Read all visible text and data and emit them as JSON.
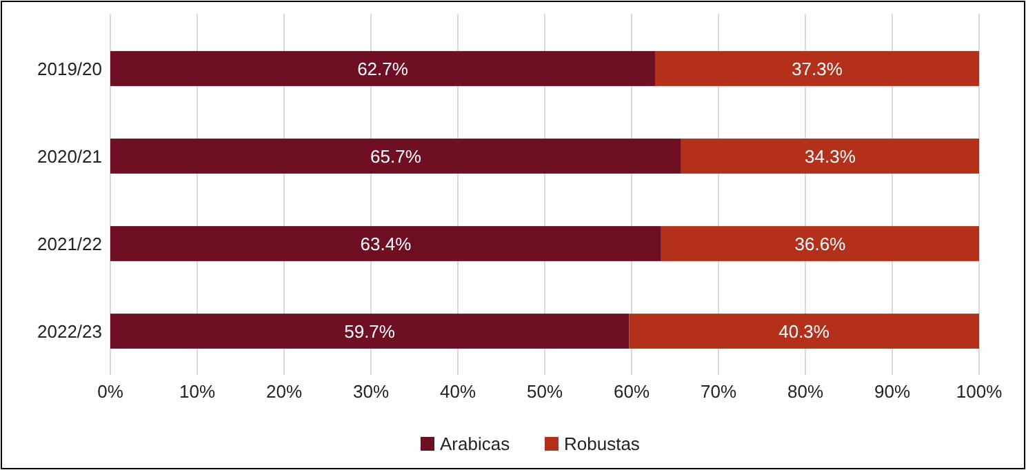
{
  "chart_data": {
    "type": "bar",
    "orientation": "horizontal",
    "stacked": true,
    "categories": [
      "2019/20",
      "2020/21",
      "2021/22",
      "2022/23"
    ],
    "series": [
      {
        "name": "Arabicas",
        "color": "#6e0f24",
        "values": [
          62.7,
          65.7,
          63.4,
          59.7
        ],
        "value_labels": [
          "62.7%",
          "65.7%",
          "63.4%",
          "59.7%"
        ]
      },
      {
        "name": "Robustas",
        "color": "#b3311b",
        "values": [
          37.3,
          34.3,
          36.6,
          40.3
        ],
        "value_labels": [
          "37.3%",
          "34.3%",
          "36.6%",
          "40.3%"
        ]
      }
    ],
    "xlim": [
      0,
      100
    ],
    "xticks": [
      {
        "value": 0,
        "label": "0%"
      },
      {
        "value": 10,
        "label": "10%"
      },
      {
        "value": 20,
        "label": "20%"
      },
      {
        "value": 30,
        "label": "30%"
      },
      {
        "value": 40,
        "label": "40%"
      },
      {
        "value": 50,
        "label": "50%"
      },
      {
        "value": 60,
        "label": "60%"
      },
      {
        "value": 70,
        "label": "70%"
      },
      {
        "value": 80,
        "label": "80%"
      },
      {
        "value": 90,
        "label": "90%"
      },
      {
        "value": 100,
        "label": "100%"
      }
    ],
    "grid": "x",
    "legend": "bottom"
  }
}
